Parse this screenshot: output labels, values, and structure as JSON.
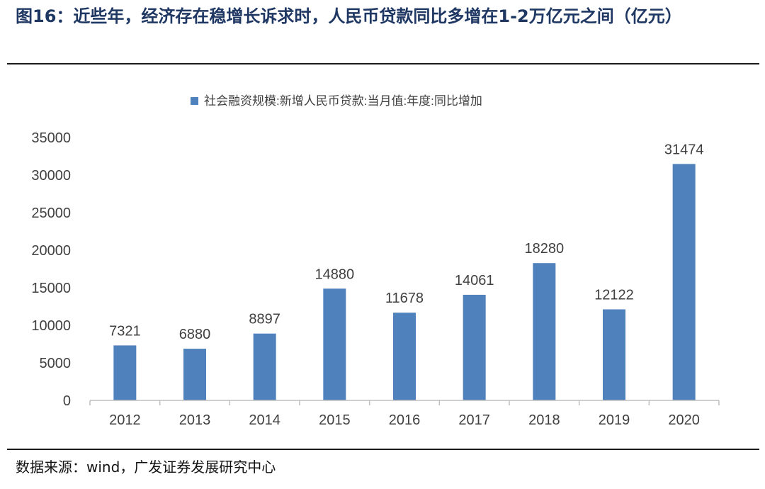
{
  "figure": {
    "title": "图16：近些年，经济存在稳增长诉求时，人民币贷款同比多增在1-2万亿元之间（亿元）",
    "source": "数据来源：wind，广发证券发展研究中心"
  },
  "chart_data": {
    "type": "bar",
    "title": "",
    "xlabel": "",
    "ylabel": "",
    "categories": [
      "2012",
      "2013",
      "2014",
      "2015",
      "2016",
      "2017",
      "2018",
      "2019",
      "2020"
    ],
    "series": [
      {
        "name": "社会融资规模:新增人民币贷款:当月值:年度:同比增加",
        "values": [
          7321,
          6880,
          8897,
          14880,
          11678,
          14061,
          18280,
          12122,
          31474
        ]
      }
    ],
    "ylim": [
      0,
      35000
    ],
    "yticks": [
      0,
      5000,
      10000,
      15000,
      20000,
      25000,
      30000,
      35000
    ],
    "grid": false,
    "legend": "top-center",
    "data_labels": true,
    "colors": {
      "bar": "#4f81bd",
      "axis": "#bfbfbf",
      "text": "#404040"
    }
  }
}
